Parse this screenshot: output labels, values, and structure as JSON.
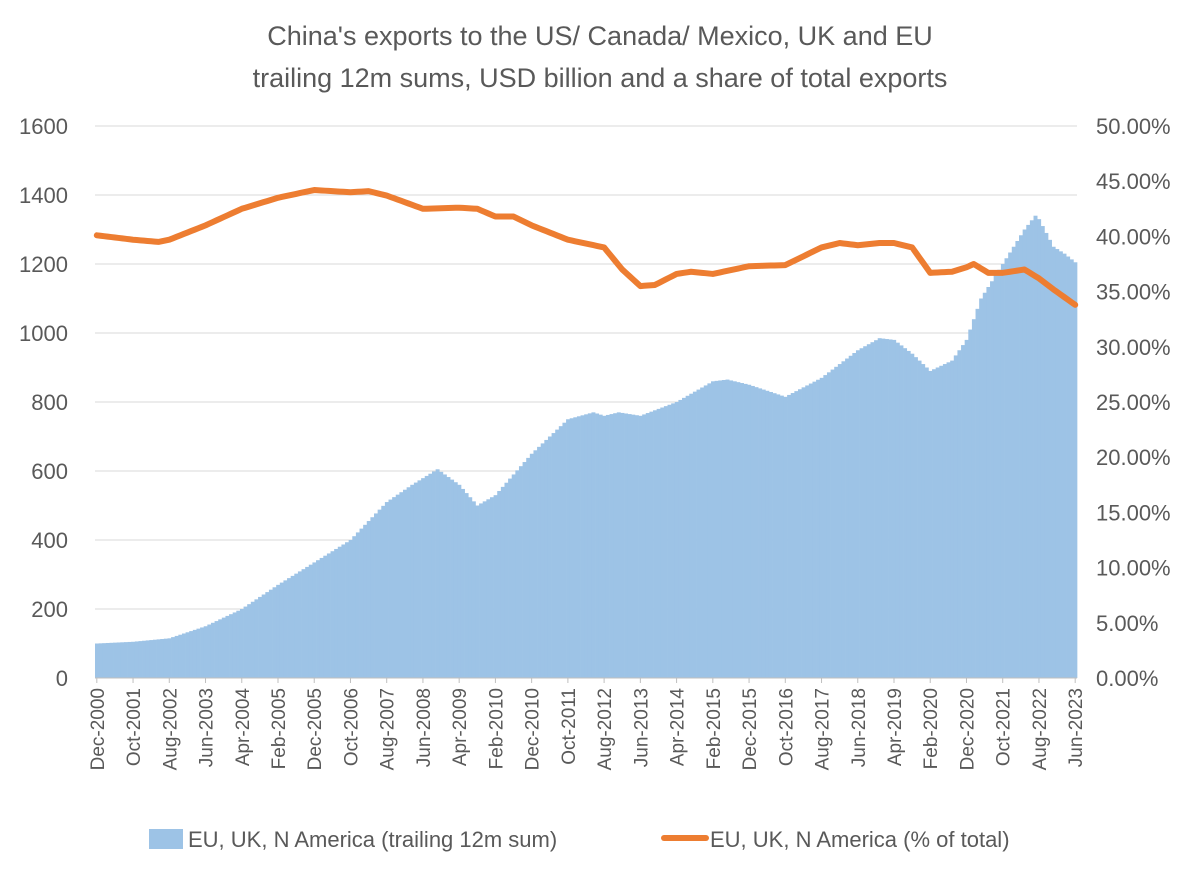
{
  "chart_data": {
    "type": "bar+line",
    "title": [
      "China's exports to the US/ Canada/ Mexico, UK and EU",
      "trailing 12m sums, USD billion and a  share of total exports"
    ],
    "x_tick_labels": [
      "Dec-2000",
      "Oct-2001",
      "Aug-2002",
      "Jun-2003",
      "Apr-2004",
      "Feb-2005",
      "Dec-2005",
      "Oct-2006",
      "Aug-2007",
      "Jun-2008",
      "Apr-2009",
      "Feb-2010",
      "Dec-2010",
      "Oct-2011",
      "Aug-2012",
      "Jun-2013",
      "Apr-2014",
      "Feb-2015",
      "Dec-2015",
      "Oct-2016",
      "Aug-2017",
      "Jun-2018",
      "Apr-2019",
      "Feb-2020",
      "Dec-2020",
      "Oct-2021",
      "Aug-2022",
      "Jun-2023"
    ],
    "y_left": {
      "min": 0,
      "max": 1600,
      "step": 200,
      "tick_labels": [
        "0",
        "200",
        "400",
        "600",
        "800",
        "1000",
        "1200",
        "1400",
        "1600"
      ]
    },
    "y_right": {
      "min": 0,
      "max": 0.5,
      "step": 0.05,
      "tick_labels": [
        "0.00%",
        "5.00%",
        "10.00%",
        "15.00%",
        "20.00%",
        "25.00%",
        "30.00%",
        "35.00%",
        "40.00%",
        "45.00%",
        "50.00%"
      ]
    },
    "grid": true,
    "legend_position": "bottom",
    "series": [
      {
        "name": "EU, UK, N America (trailing 12m sum)",
        "type": "bar",
        "axis": "left",
        "color": "#9dc3e6",
        "anchors": [
          [
            "Dec-2000",
            100
          ],
          [
            "Oct-2001",
            105
          ],
          [
            "Aug-2002",
            115
          ],
          [
            "Jun-2003",
            150
          ],
          [
            "Apr-2004",
            200
          ],
          [
            "Feb-2005",
            270
          ],
          [
            "Dec-2005",
            335
          ],
          [
            "Oct-2006",
            400
          ],
          [
            "Aug-2007",
            510
          ],
          [
            "Mar-2008",
            560
          ],
          [
            "Oct-2008",
            605
          ],
          [
            "Apr-2009",
            560
          ],
          [
            "Sep-2009",
            500
          ],
          [
            "Feb-2010",
            530
          ],
          [
            "Dec-2010",
            650
          ],
          [
            "Oct-2011",
            750
          ],
          [
            "May-2012",
            770
          ],
          [
            "Aug-2012",
            760
          ],
          [
            "Dec-2012",
            770
          ],
          [
            "Jun-2013",
            760
          ],
          [
            "Apr-2014",
            800
          ],
          [
            "Feb-2015",
            860
          ],
          [
            "Jun-2015",
            865
          ],
          [
            "Dec-2015",
            850
          ],
          [
            "Oct-2016",
            815
          ],
          [
            "Aug-2017",
            870
          ],
          [
            "Jun-2018",
            950
          ],
          [
            "Dec-2018",
            985
          ],
          [
            "Apr-2019",
            980
          ],
          [
            "Sep-2019",
            940
          ],
          [
            "Feb-2020",
            890
          ],
          [
            "Aug-2020",
            920
          ],
          [
            "Dec-2020",
            980
          ],
          [
            "Apr-2021",
            1100
          ],
          [
            "Oct-2021",
            1200
          ],
          [
            "Apr-2022",
            1300
          ],
          [
            "Jul-2022",
            1340
          ],
          [
            "Aug-2022",
            1330
          ],
          [
            "Dec-2022",
            1250
          ],
          [
            "Mar-2023",
            1230
          ],
          [
            "Jun-2023",
            1205
          ]
        ]
      },
      {
        "name": "EU, UK, N America (% of total)",
        "type": "line",
        "axis": "right",
        "color": "#ed7d31",
        "anchors": [
          [
            "Dec-2000",
            0.401
          ],
          [
            "Oct-2001",
            0.397
          ],
          [
            "May-2002",
            0.395
          ],
          [
            "Aug-2002",
            0.397
          ],
          [
            "Jun-2003",
            0.41
          ],
          [
            "Apr-2004",
            0.425
          ],
          [
            "Feb-2005",
            0.435
          ],
          [
            "Dec-2005",
            0.442
          ],
          [
            "Oct-2006",
            0.44
          ],
          [
            "Mar-2007",
            0.441
          ],
          [
            "Aug-2007",
            0.437
          ],
          [
            "Jun-2008",
            0.425
          ],
          [
            "Apr-2009",
            0.426
          ],
          [
            "Sep-2009",
            0.425
          ],
          [
            "Feb-2010",
            0.418
          ],
          [
            "Jul-2010",
            0.418
          ],
          [
            "Dec-2010",
            0.41
          ],
          [
            "Oct-2011",
            0.397
          ],
          [
            "Aug-2012",
            0.39
          ],
          [
            "Jan-2013",
            0.37
          ],
          [
            "Jun-2013",
            0.355
          ],
          [
            "Oct-2013",
            0.356
          ],
          [
            "Apr-2014",
            0.366
          ],
          [
            "Aug-2014",
            0.368
          ],
          [
            "Feb-2015",
            0.366
          ],
          [
            "Dec-2015",
            0.373
          ],
          [
            "Oct-2016",
            0.374
          ],
          [
            "Aug-2017",
            0.39
          ],
          [
            "Jan-2018",
            0.394
          ],
          [
            "Jun-2018",
            0.392
          ],
          [
            "Dec-2018",
            0.394
          ],
          [
            "Apr-2019",
            0.394
          ],
          [
            "Sep-2019",
            0.39
          ],
          [
            "Feb-2020",
            0.367
          ],
          [
            "Aug-2020",
            0.368
          ],
          [
            "Dec-2020",
            0.372
          ],
          [
            "Feb-2021",
            0.375
          ],
          [
            "Jun-2021",
            0.367
          ],
          [
            "Oct-2021",
            0.367
          ],
          [
            "Apr-2022",
            0.37
          ],
          [
            "Aug-2022",
            0.362
          ],
          [
            "Dec-2022",
            0.352
          ],
          [
            "Jun-2023",
            0.338
          ]
        ]
      }
    ]
  }
}
